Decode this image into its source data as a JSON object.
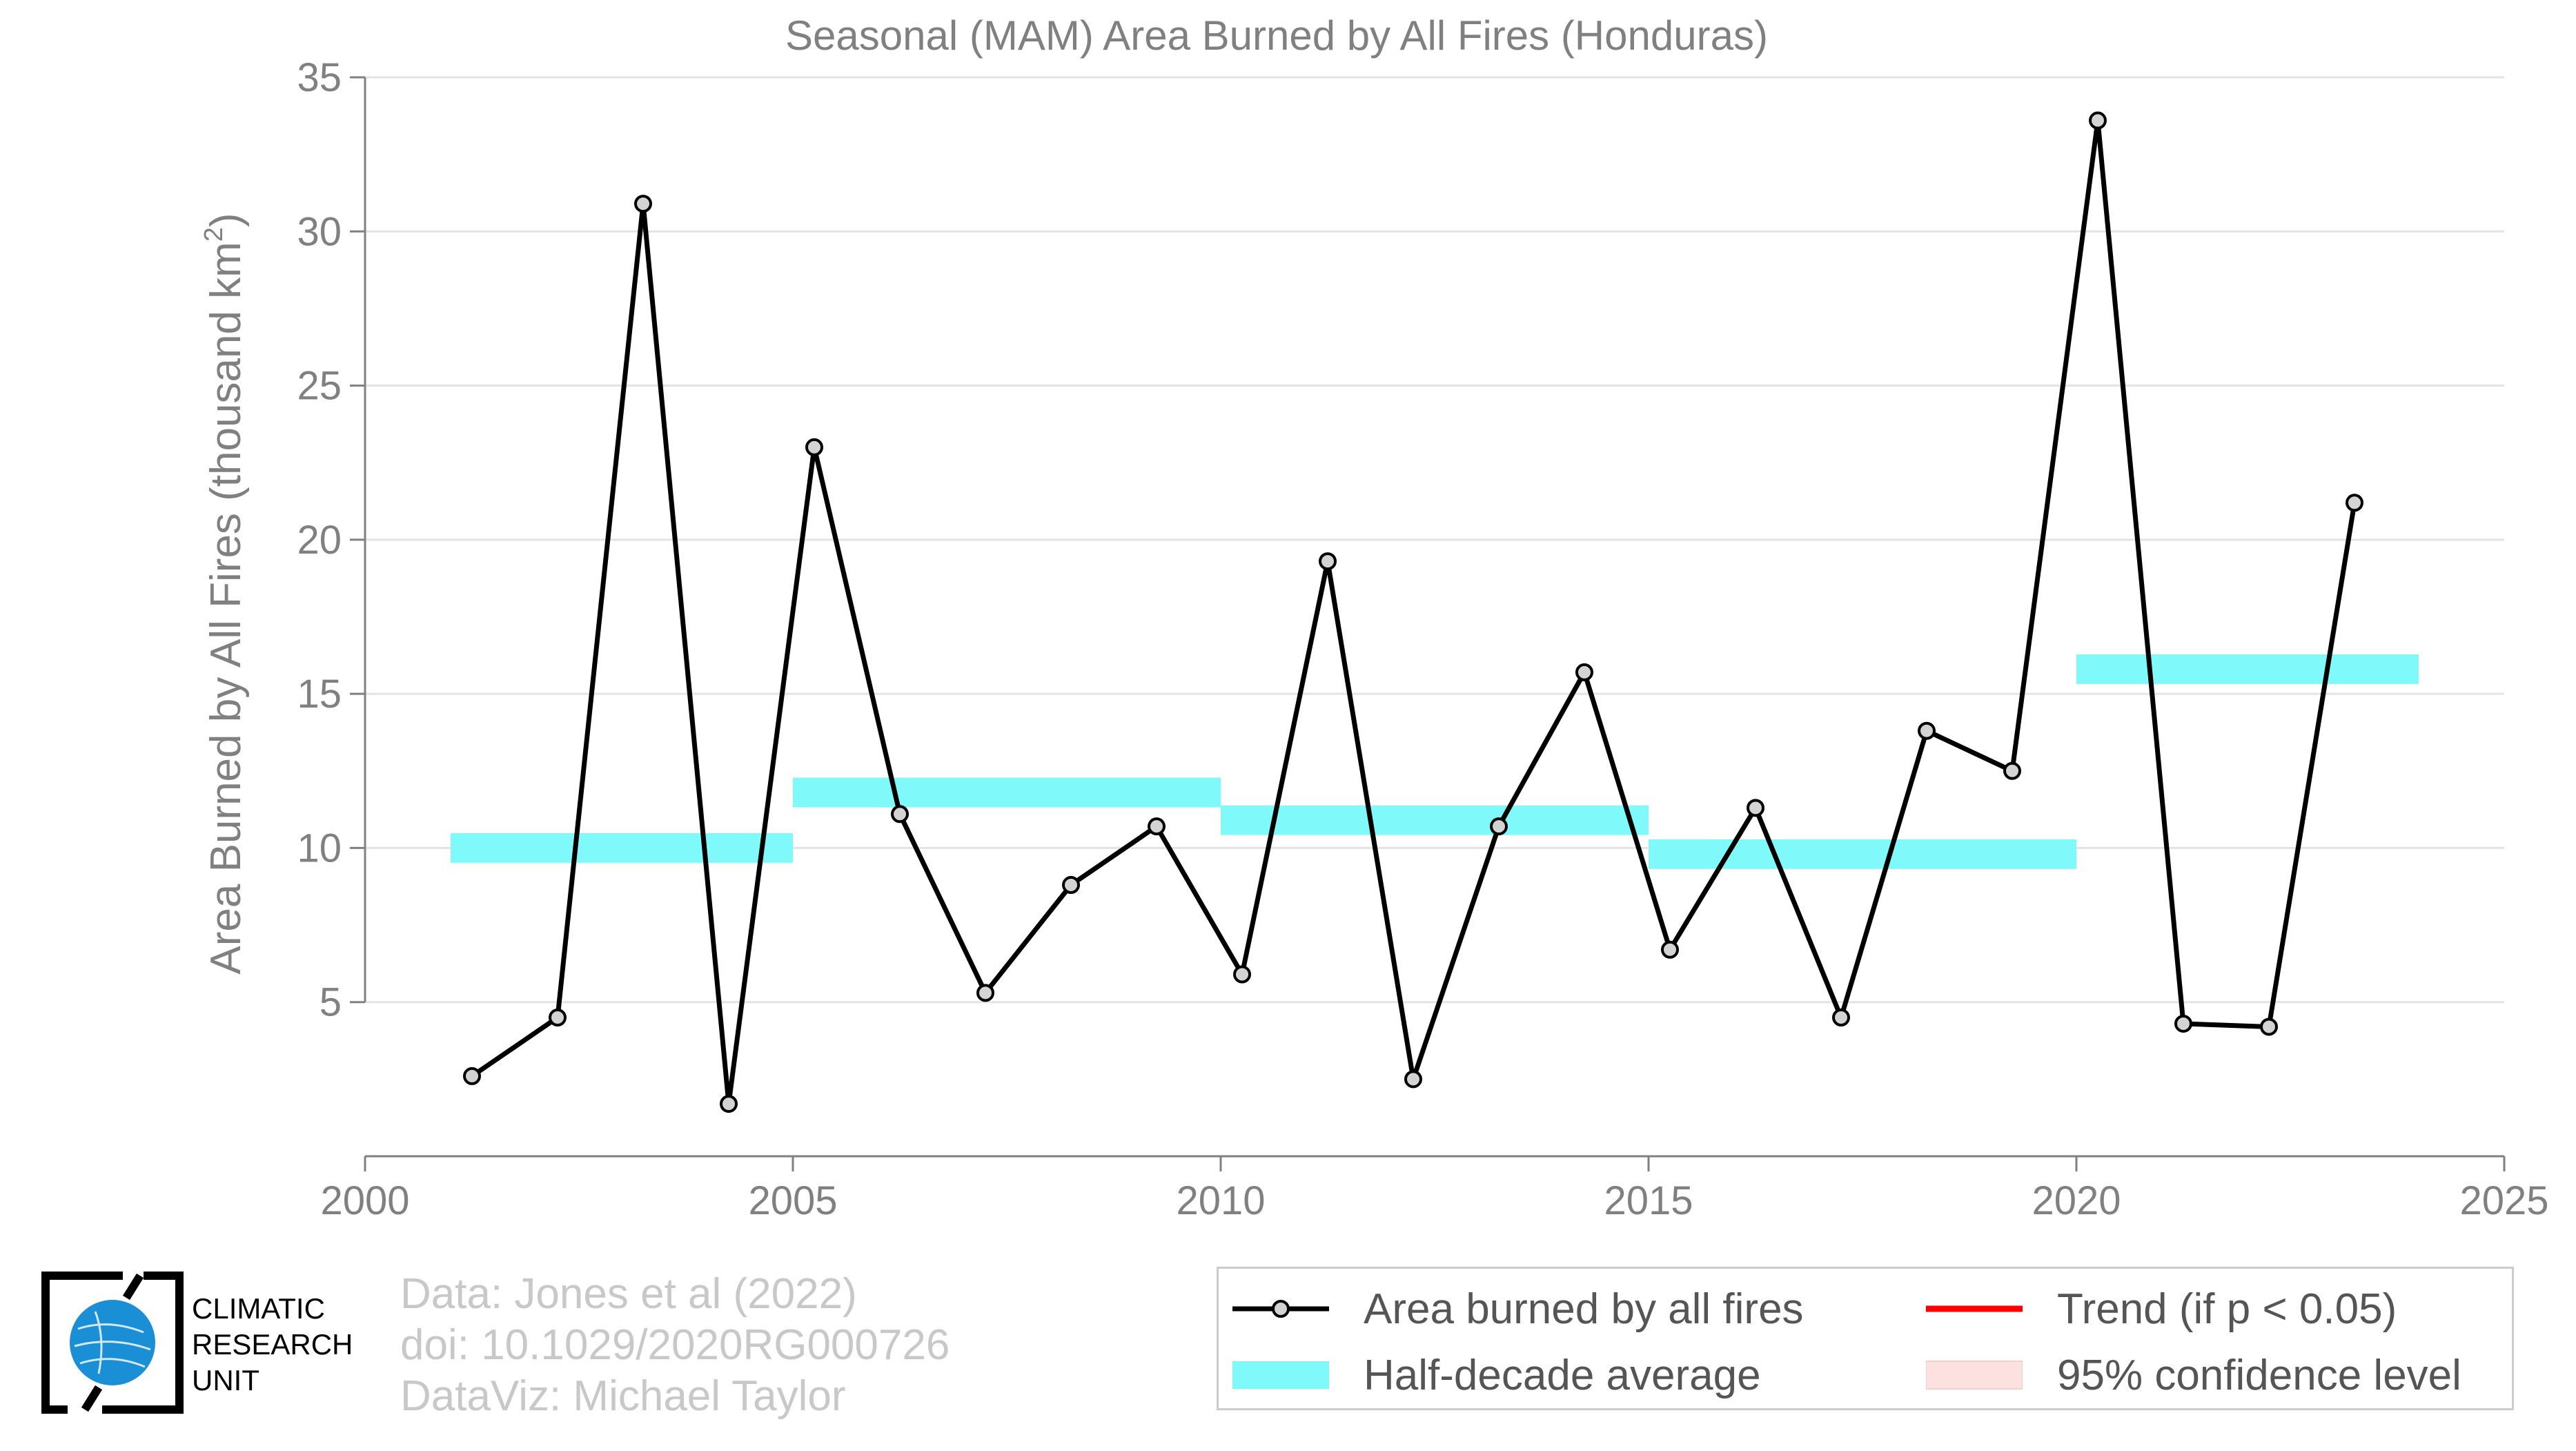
{
  "chart_data": {
    "type": "line",
    "title": "Seasonal (MAM) Area Burned by All Fires (Honduras)",
    "xlabel": "",
    "ylabel": "Area Burned by All Fires (thousand km",
    "ylabel_sup": "2",
    "ylabel_close": ")",
    "xlim": [
      2000,
      2025
    ],
    "ylim": [
      0,
      35
    ],
    "xticks": [
      2000,
      2005,
      2010,
      2015,
      2020,
      2025
    ],
    "yticks": [
      5,
      10,
      15,
      20,
      25,
      30,
      35
    ],
    "grid": true,
    "legend_position": "bottom-right",
    "series": [
      {
        "name": "Area burned by all fires",
        "color": "#000000",
        "marker_fill": "#d3d3d3",
        "x": [
          2001.25,
          2002.25,
          2003.25,
          2004.25,
          2005.25,
          2006.25,
          2007.25,
          2008.25,
          2009.25,
          2010.25,
          2011.25,
          2012.25,
          2013.25,
          2014.25,
          2015.25,
          2016.25,
          2017.25,
          2018.25,
          2019.25,
          2020.25,
          2021.25,
          2022.25,
          2023.25
        ],
        "values": [
          2.6,
          4.5,
          30.9,
          1.7,
          23.0,
          11.1,
          5.3,
          8.8,
          10.7,
          5.9,
          19.3,
          2.5,
          10.7,
          15.7,
          6.7,
          11.3,
          4.5,
          13.8,
          12.5,
          33.6,
          4.3,
          4.2,
          21.2
        ]
      }
    ],
    "half_decade_average": {
      "name": "Half-decade average",
      "color": "#7ff9f9",
      "segments": [
        {
          "x_start": 2001,
          "x_end": 2005,
          "value": 10.0
        },
        {
          "x_start": 2005,
          "x_end": 2010,
          "value": 11.8
        },
        {
          "x_start": 2010,
          "x_end": 2015,
          "value": 10.9
        },
        {
          "x_start": 2015,
          "x_end": 2020,
          "value": 9.8
        },
        {
          "x_start": 2020,
          "x_end": 2024,
          "value": 15.8
        }
      ]
    },
    "legend": [
      {
        "label": "Area burned by all fires",
        "symbol": "line-marker",
        "color": "#000000"
      },
      {
        "label": "Trend (if p < 0.05)",
        "symbol": "line",
        "color": "#ff0000"
      },
      {
        "label": "Half-decade average",
        "symbol": "band",
        "color": "#7ff9f9"
      },
      {
        "label": "95% confidence level",
        "symbol": "band",
        "color": "#fde0e0"
      }
    ]
  },
  "credits": {
    "line1": "Data: Jones et al (2022)",
    "line2": "doi: 10.1029/2020RG000726",
    "line3": "DataViz: Michael Taylor"
  },
  "logo": {
    "line1": "CLIMATIC",
    "line2": "RESEARCH",
    "line3": "UNIT",
    "globe_color": "#1a8fd6"
  }
}
